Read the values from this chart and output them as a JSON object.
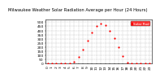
{
  "title": "Milwaukee Weather Solar Radiation Average per Hour (24 Hours)",
  "x_hours": [
    0,
    1,
    2,
    3,
    4,
    5,
    6,
    7,
    8,
    9,
    10,
    11,
    12,
    13,
    14,
    15,
    16,
    17,
    18,
    19,
    20,
    21,
    22,
    23
  ],
  "y_values": [
    0,
    0,
    0,
    0,
    0,
    0,
    18,
    80,
    170,
    280,
    380,
    450,
    480,
    460,
    400,
    310,
    200,
    90,
    10,
    0,
    0,
    0,
    0,
    3
  ],
  "dot_color": "#ff0000",
  "dot_size": 2.5,
  "bg_color": "#ffffff",
  "grid_color": "#bbbbbb",
  "tick_fontsize": 3.2,
  "title_fontsize": 3.8,
  "ylim": [
    0,
    530
  ],
  "xlim": [
    -0.5,
    23.5
  ],
  "yticks": [
    0,
    50,
    100,
    150,
    200,
    250,
    300,
    350,
    400,
    450,
    500
  ],
  "legend_label": "Solar Rad",
  "legend_color": "#ff0000",
  "legend_bg": "#ff0000"
}
